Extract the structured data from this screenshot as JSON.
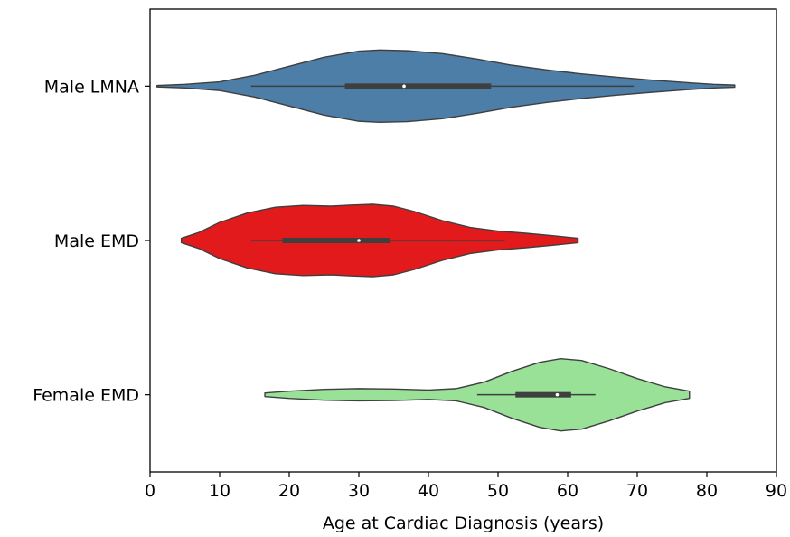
{
  "chart_data": {
    "type": "violin",
    "orientation": "horizontal",
    "title": "",
    "xlabel": "Age at Cardiac Diagnosis (years)",
    "ylabel": "",
    "xlim": [
      0,
      90
    ],
    "xticks": [
      0,
      10,
      20,
      30,
      40,
      50,
      60,
      70,
      80,
      90
    ],
    "grid": false,
    "categories": [
      "Male LMNA",
      "Male EMD",
      "Female EMD"
    ],
    "series": [
      {
        "category": "Male LMNA",
        "color": "#4d7ea8",
        "range": [
          1,
          84
        ],
        "whiskers": [
          14.5,
          69.5
        ],
        "quartiles": [
          28,
          49
        ],
        "median": 36.5,
        "density": [
          [
            1,
            0.02
          ],
          [
            5,
            0.05
          ],
          [
            10,
            0.12
          ],
          [
            15,
            0.3
          ],
          [
            20,
            0.55
          ],
          [
            25,
            0.8
          ],
          [
            30,
            0.97
          ],
          [
            33,
            1.0
          ],
          [
            37,
            0.98
          ],
          [
            42,
            0.9
          ],
          [
            47,
            0.75
          ],
          [
            52,
            0.58
          ],
          [
            57,
            0.45
          ],
          [
            62,
            0.34
          ],
          [
            67,
            0.25
          ],
          [
            72,
            0.17
          ],
          [
            77,
            0.1
          ],
          [
            81,
            0.05
          ],
          [
            84,
            0.03
          ]
        ]
      },
      {
        "category": "Male EMD",
        "color": "#e31a1c",
        "range": [
          4.5,
          61.5
        ],
        "whiskers": [
          14.5,
          51
        ],
        "quartiles": [
          19,
          34.5
        ],
        "median": 30,
        "density": [
          [
            4.5,
            0.06
          ],
          [
            7,
            0.22
          ],
          [
            10,
            0.5
          ],
          [
            14,
            0.76
          ],
          [
            18,
            0.92
          ],
          [
            22,
            0.97
          ],
          [
            26,
            0.95
          ],
          [
            29,
            0.98
          ],
          [
            32,
            1.0
          ],
          [
            35,
            0.95
          ],
          [
            38,
            0.8
          ],
          [
            42,
            0.55
          ],
          [
            46,
            0.36
          ],
          [
            50,
            0.26
          ],
          [
            54,
            0.2
          ],
          [
            58,
            0.13
          ],
          [
            61.5,
            0.06
          ]
        ]
      },
      {
        "category": "Female EMD",
        "color": "#98e197",
        "range": [
          16.5,
          77.5
        ],
        "whiskers": [
          47,
          64
        ],
        "quartiles": [
          52.5,
          60.5
        ],
        "median": 58.5,
        "density": [
          [
            16.5,
            0.05
          ],
          [
            20,
            0.1
          ],
          [
            25,
            0.15
          ],
          [
            30,
            0.17
          ],
          [
            35,
            0.16
          ],
          [
            40,
            0.13
          ],
          [
            44,
            0.17
          ],
          [
            48,
            0.35
          ],
          [
            52,
            0.65
          ],
          [
            56,
            0.9
          ],
          [
            59,
            1.0
          ],
          [
            62,
            0.95
          ],
          [
            66,
            0.72
          ],
          [
            70,
            0.45
          ],
          [
            74,
            0.22
          ],
          [
            77.5,
            0.1
          ]
        ]
      }
    ]
  }
}
